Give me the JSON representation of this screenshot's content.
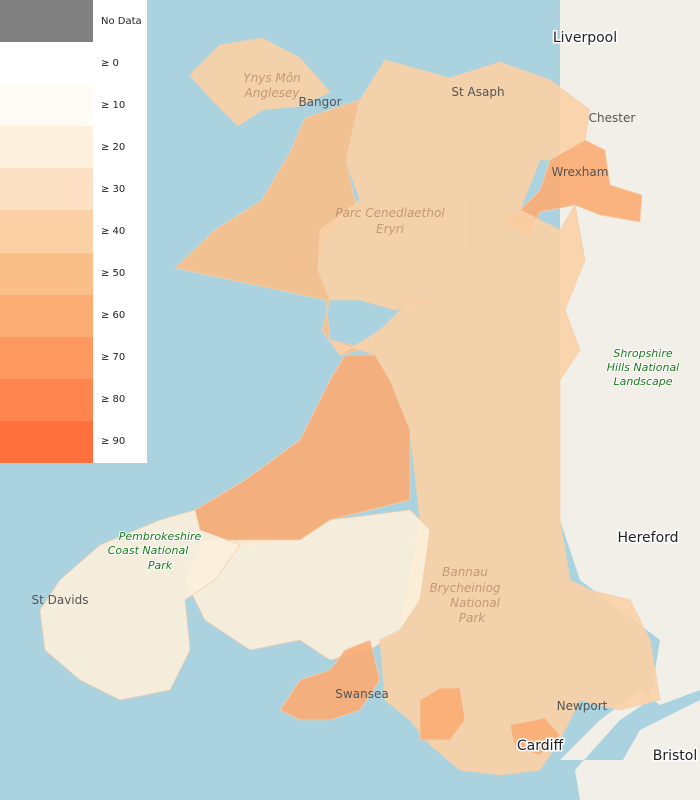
{
  "legend": {
    "items": [
      {
        "label": "No Data",
        "color": "#808080"
      },
      {
        "label": "≥ 0",
        "color": "#ffffff"
      },
      {
        "label": "≥ 10",
        "color": "#fffbf5"
      },
      {
        "label": "≥ 20",
        "color": "#fdf0dc"
      },
      {
        "label": "≥ 30",
        "color": "#fce1c4"
      },
      {
        "label": "≥ 40",
        "color": "#fbd0a5"
      },
      {
        "label": "≥ 50",
        "color": "#fabf89"
      },
      {
        "label": "≥ 60",
        "color": "#fbac73"
      },
      {
        "label": "≥ 70",
        "color": "#fd9960"
      },
      {
        "label": "≥ 80",
        "color": "#fe864e"
      },
      {
        "label": "≥ 90",
        "color": "#ff703c"
      }
    ]
  },
  "map_labels": [
    "Liverpool",
    "Chester",
    "Wrexham",
    "Ynys Môn",
    "Anglesey",
    "Bangor",
    "St Asaph",
    "Parc Cenedlaethol",
    "Eryri",
    "Shropshire",
    "Hills National",
    "Landscape",
    "Hereford",
    "Pembrokeshire",
    "Coast National",
    "Park",
    "St Davids",
    "Bannau",
    "Brycheiniog",
    "National",
    "Park",
    "Swansea",
    "Newport",
    "Cardiff",
    "Bristol"
  ]
}
